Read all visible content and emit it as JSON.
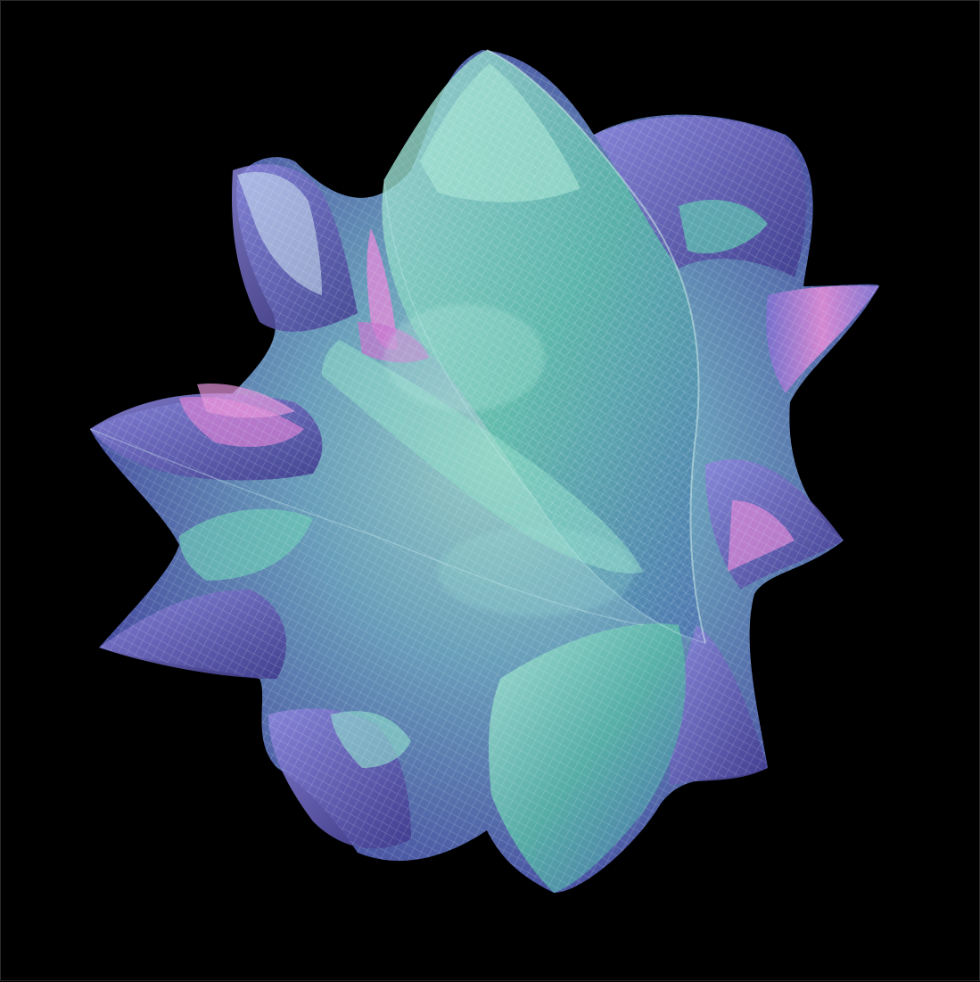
{
  "image": {
    "subject": "calabi-yau-manifold-render",
    "background_color": "#000000",
    "palette": {
      "deep_violet": "#3f3a8c",
      "periwinkle": "#7b7fd6",
      "lavender": "#a7a3e6",
      "teal": "#3fb4a0",
      "mint": "#86e0c6",
      "ice": "#cdeef0",
      "magenta": "#c06cc8",
      "pink": "#e28bd6"
    }
  }
}
